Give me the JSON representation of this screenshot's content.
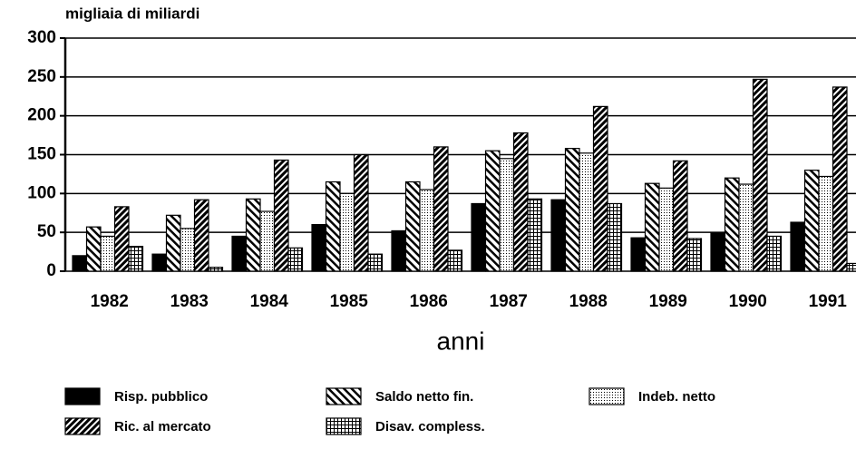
{
  "chart_data": {
    "type": "bar",
    "ylabel": "migliaia di miliardi",
    "xlabel": "anni",
    "categories": [
      "1982",
      "1983",
      "1984",
      "1985",
      "1986",
      "1987",
      "1988",
      "1989",
      "1990",
      "1991"
    ],
    "series": [
      {
        "name": "Risp. pubblico",
        "color": "#000000",
        "pattern": "solid",
        "values": [
          20,
          22,
          45,
          60,
          52,
          87,
          92,
          43,
          50,
          63
        ]
      },
      {
        "name": "Saldo netto fin.",
        "color": "#000000",
        "pattern": "backslash",
        "values": [
          57,
          72,
          93,
          115,
          115,
          155,
          158,
          113,
          120,
          130
        ]
      },
      {
        "name": "Indeb. netto",
        "color": "#000000",
        "pattern": "dots",
        "values": [
          45,
          55,
          77,
          100,
          105,
          145,
          152,
          107,
          112,
          122
        ]
      },
      {
        "name": "Ric. al mercato",
        "color": "#000000",
        "pattern": "slash",
        "values": [
          83,
          92,
          143,
          150,
          160,
          178,
          212,
          142,
          247,
          237
        ]
      },
      {
        "name": "Disav. compless.",
        "color": "#000000",
        "pattern": "grid",
        "values": [
          32,
          5,
          30,
          22,
          27,
          93,
          87,
          42,
          45,
          10
        ]
      }
    ],
    "ylim": [
      0,
      300
    ],
    "yticks": [
      0,
      50,
      100,
      150,
      200,
      250,
      300
    ],
    "grid": true
  }
}
